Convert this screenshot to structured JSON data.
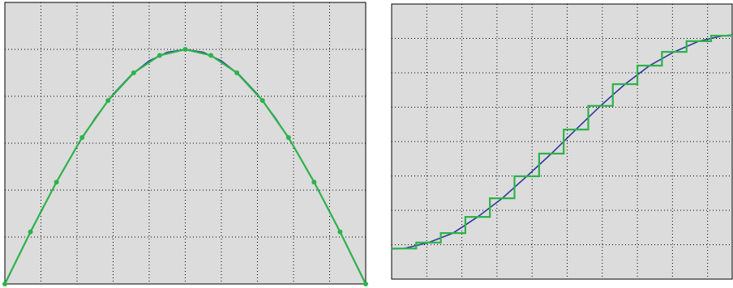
{
  "chart_data": [
    {
      "type": "line",
      "xlim": [
        0,
        10
      ],
      "ylim": [
        0,
        6
      ],
      "xticks": [
        1,
        2,
        3,
        4,
        5,
        6,
        7,
        8,
        9
      ],
      "yticks": [
        1,
        2,
        3,
        4,
        5
      ],
      "grid": true,
      "series": [
        {
          "color": "#2b3a9b",
          "markers": false,
          "x": [
            0,
            0.5,
            1,
            1.5,
            2,
            2.5,
            3,
            3.5,
            4,
            4.5,
            5,
            5.5,
            6,
            6.5,
            7,
            7.5,
            8,
            8.5,
            9,
            9.5,
            10
          ],
          "values": [
            0,
            0.782,
            1.545,
            2.27,
            2.939,
            3.536,
            4.045,
            4.455,
            4.755,
            4.938,
            5,
            4.938,
            4.755,
            4.455,
            4.045,
            3.536,
            2.939,
            2.27,
            1.545,
            0.782,
            0
          ]
        },
        {
          "color": "#2db34a",
          "markers": true,
          "x": [
            0,
            0.71,
            1.43,
            2.14,
            2.86,
            3.57,
            4.29,
            5,
            5.71,
            6.43,
            7.14,
            7.86,
            8.57,
            9.29,
            10
          ],
          "values": [
            0,
            1.11,
            2.17,
            3.12,
            3.91,
            4.5,
            4.87,
            5,
            4.87,
            4.5,
            3.91,
            3.12,
            2.17,
            1.11,
            0
          ]
        }
      ]
    },
    {
      "type": "line",
      "xlim": [
        0,
        9.7
      ],
      "ylim": [
        0,
        8
      ],
      "xticks": [
        1,
        2,
        3,
        4,
        5,
        6,
        7,
        8,
        9
      ],
      "yticks": [
        1,
        2,
        3,
        4,
        5,
        6,
        7
      ],
      "grid": true,
      "series": [
        {
          "color": "#2b3a9b",
          "markers": false,
          "x": [
            0,
            0.35,
            1.05,
            1.75,
            2.45,
            3.15,
            3.85,
            4.55,
            5.25,
            5.95,
            6.65,
            7.35,
            8.05,
            8.75,
            9.45,
            9.7
          ],
          "values": [
            0.88,
            0.89,
            1.06,
            1.34,
            1.81,
            2.35,
            2.99,
            3.65,
            4.35,
            5.04,
            5.67,
            6.21,
            6.61,
            6.92,
            7.08,
            7.1
          ]
        },
        {
          "color": "#2db34a",
          "markers": false,
          "drawstyle": "steps-post",
          "x": [
            0,
            0.7,
            1.4,
            2.1,
            2.8,
            3.5,
            4.2,
            4.9,
            5.6,
            6.3,
            7.0,
            7.7,
            8.4,
            9.1
          ],
          "values": [
            0.89,
            1.06,
            1.34,
            1.81,
            2.35,
            2.99,
            3.65,
            4.35,
            5.04,
            5.67,
            6.21,
            6.61,
            6.92,
            7.08
          ]
        }
      ]
    }
  ]
}
